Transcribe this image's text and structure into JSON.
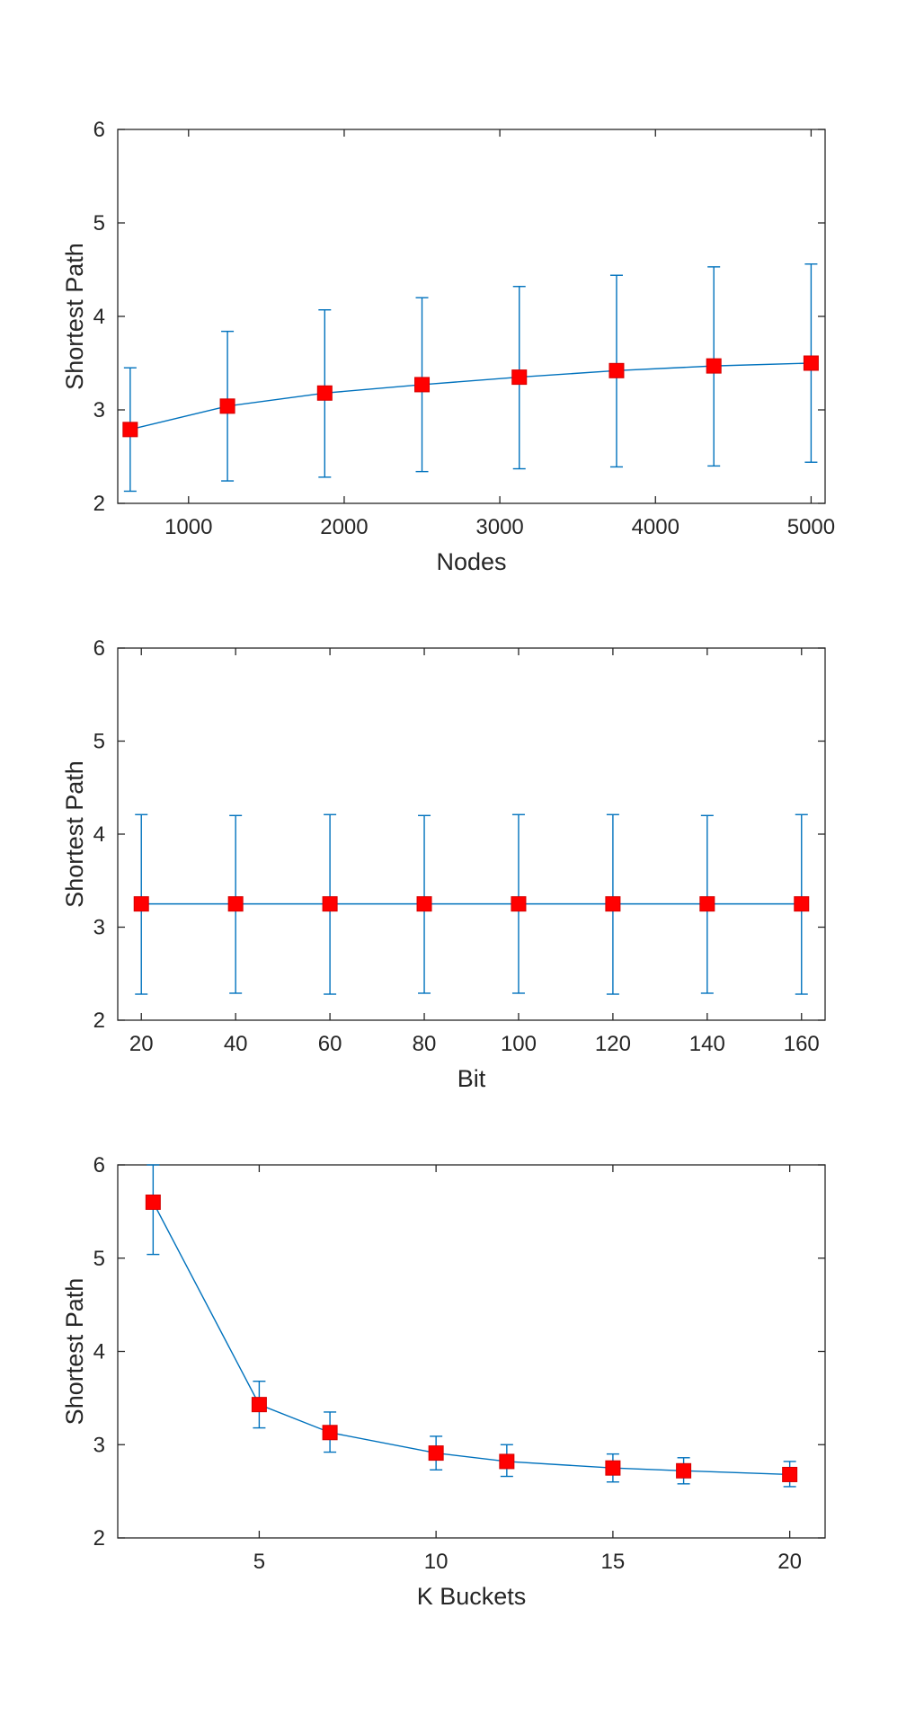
{
  "colors": {
    "line": "#0072BD",
    "marker": "#FF0000",
    "axes": "#262626"
  },
  "chart_data": [
    {
      "type": "line",
      "title": "",
      "xlabel": "Nodes",
      "ylabel": "Shortest Path",
      "xlim": [
        545,
        5090
      ],
      "ylim": [
        2,
        6
      ],
      "xticks": [
        1000,
        2000,
        3000,
        4000,
        5000
      ],
      "yticks": [
        2,
        3,
        4,
        5,
        6
      ],
      "grid": false,
      "series": [
        {
          "x": [
            625,
            1250,
            1875,
            2500,
            3125,
            3750,
            4375,
            5000
          ],
          "y": [
            2.79,
            3.04,
            3.18,
            3.27,
            3.35,
            3.42,
            3.47,
            3.5
          ],
          "err_low": [
            2.13,
            2.24,
            2.28,
            2.34,
            2.37,
            2.39,
            2.4,
            2.44
          ],
          "err_high": [
            3.45,
            3.84,
            4.07,
            4.2,
            4.32,
            4.44,
            4.53,
            4.56
          ]
        }
      ]
    },
    {
      "type": "line",
      "title": "",
      "xlabel": "Bit",
      "ylabel": "Shortest Path",
      "xlim": [
        15,
        165
      ],
      "ylim": [
        2,
        6
      ],
      "xticks": [
        20,
        40,
        60,
        80,
        100,
        120,
        140,
        160
      ],
      "yticks": [
        2,
        3,
        4,
        5,
        6
      ],
      "grid": false,
      "series": [
        {
          "x": [
            20,
            40,
            60,
            80,
            100,
            120,
            140,
            160
          ],
          "y": [
            3.25,
            3.25,
            3.25,
            3.25,
            3.25,
            3.25,
            3.25,
            3.25
          ],
          "err_low": [
            2.28,
            2.29,
            2.28,
            2.29,
            2.29,
            2.28,
            2.29,
            2.28
          ],
          "err_high": [
            4.21,
            4.2,
            4.21,
            4.2,
            4.21,
            4.21,
            4.2,
            4.21
          ]
        }
      ]
    },
    {
      "type": "line",
      "title": "",
      "xlabel": "K Buckets",
      "ylabel": "Shortest Path",
      "xlim": [
        1,
        21
      ],
      "ylim": [
        2,
        6
      ],
      "xticks": [
        5,
        10,
        15,
        20
      ],
      "yticks": [
        2,
        3,
        4,
        5,
        6
      ],
      "grid": false,
      "series": [
        {
          "x": [
            2,
            5,
            7,
            10,
            12,
            15,
            17,
            20
          ],
          "y": [
            5.6,
            3.43,
            3.13,
            2.91,
            2.82,
            2.75,
            2.72,
            2.68
          ],
          "err_low": [
            5.04,
            3.18,
            2.92,
            2.73,
            2.66,
            2.6,
            2.58,
            2.55
          ],
          "err_high": [
            6.0,
            3.68,
            3.35,
            3.09,
            3.0,
            2.9,
            2.86,
            2.82
          ]
        }
      ]
    }
  ]
}
